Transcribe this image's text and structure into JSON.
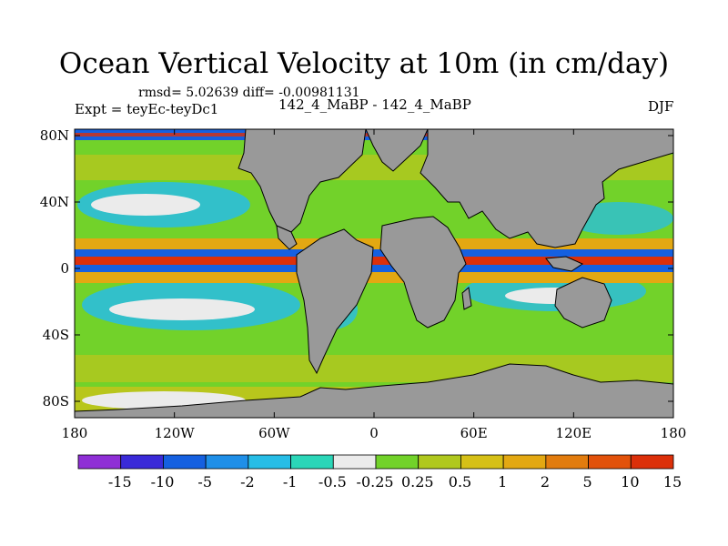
{
  "title": "Ocean Vertical Velocity at 10m (in cm/day)",
  "stats": "rmsd= 5.02639 diff= -0.00981131",
  "experiment": "Expt = teyEc-teyDc1",
  "comparison": "142_4_MaBP - 142_4_MaBP",
  "season": "DJF",
  "land_color": "#999999",
  "axes": {
    "lat_ticks": [
      "80N",
      "40N",
      "0",
      "40S",
      "80S"
    ],
    "lon_ticks": [
      "180",
      "120W",
      "60W",
      "0",
      "60E",
      "120E",
      "180"
    ]
  },
  "colorbar": {
    "colors": [
      "#8f2fd6",
      "#3a2ad8",
      "#1560e0",
      "#1f8fe8",
      "#27bde6",
      "#2bd6b8",
      "#ebebeb",
      "#72d22a",
      "#b0c81e",
      "#d6c017",
      "#e3a812",
      "#e27c0e",
      "#e2520b",
      "#dc300a"
    ],
    "labels": [
      "-15",
      "-10",
      "-5",
      "-2",
      "-1",
      "-0.5",
      "-0.25",
      "0.25",
      "0.5",
      "1",
      "2",
      "5",
      "10",
      "15"
    ]
  },
  "chart_data": {
    "type": "heatmap",
    "title": "Ocean Vertical Velocity at 10m (in cm/day)",
    "variable": "ocean vertical velocity at 10 m",
    "units": "cm/day",
    "season": "DJF",
    "x_range": [
      -180,
      180
    ],
    "y_range": [
      -90,
      90
    ],
    "contour_levels": [
      -15,
      -10,
      -5,
      -2,
      -1,
      -0.5,
      -0.25,
      0.25,
      0.5,
      1,
      2,
      5,
      10,
      15
    ],
    "features": [
      {
        "region": "equatorial band",
        "value_class": "strong upwelling",
        "range": "> 5"
      },
      {
        "region": "just off equator",
        "value_class": "downwelling",
        "range": "< -5"
      },
      {
        "region": "subtropical gyres",
        "value_class": "weak downwelling",
        "range": "-2 to -0.25"
      },
      {
        "region": "mid-latitudes",
        "value_class": "weak upwelling",
        "range": "0.25 to 2"
      }
    ]
  }
}
